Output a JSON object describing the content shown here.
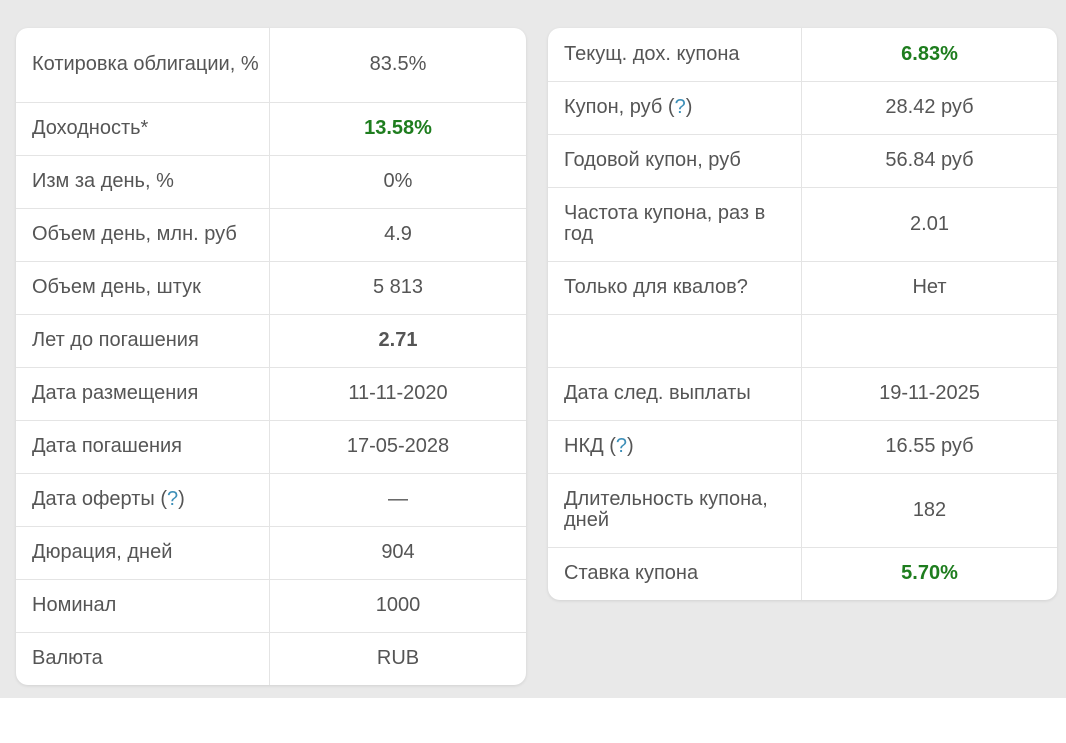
{
  "left_table": {
    "rows": [
      {
        "label": "Котировка облигации, %",
        "value": "83.5%"
      },
      {
        "label": "Доходность*",
        "value": "13.58%"
      },
      {
        "label": "Изм за день, %",
        "value": "0%"
      },
      {
        "label": "Объем день, млн. руб",
        "value": "4.9"
      },
      {
        "label": "Объем день, штук",
        "value": "5 813"
      },
      {
        "label": "Лет до погашения",
        "value": "2.71"
      },
      {
        "label": "Дата размещения",
        "value": "11-11-2020"
      },
      {
        "label": "Дата погашения",
        "value": "17-05-2028"
      },
      {
        "label": "Дата оферты",
        "help": "?",
        "value": "—"
      },
      {
        "label": "Дюрация, дней",
        "value": "904"
      },
      {
        "label": "Номинал",
        "value": "1000"
      },
      {
        "label": "Валюта",
        "value": "RUB"
      }
    ]
  },
  "right_table": {
    "rows": [
      {
        "label": "Текущ. дох. купона",
        "value": "6.83%"
      },
      {
        "label": "Купон, руб",
        "help": "?",
        "value": "28.42 руб"
      },
      {
        "label": "Годовой купон, руб",
        "value": "56.84 руб"
      },
      {
        "label": "Частота купона, раз в год",
        "value": "2.01"
      },
      {
        "label": "Только для квалов?",
        "value": "Нет"
      },
      {
        "label": "",
        "value": ""
      },
      {
        "label": "Дата след. выплаты",
        "value": "19-11-2025"
      },
      {
        "label": "НКД",
        "help": "?",
        "value": "16.55 руб"
      },
      {
        "label": "Длительность купона, дней",
        "value": "182"
      },
      {
        "label": "Ставка купона",
        "value": "5.70%"
      }
    ]
  },
  "colors": {
    "highlight_green": "#1e7d1e",
    "help_link": "#3d8fb8",
    "background": "#e9e9e9"
  }
}
